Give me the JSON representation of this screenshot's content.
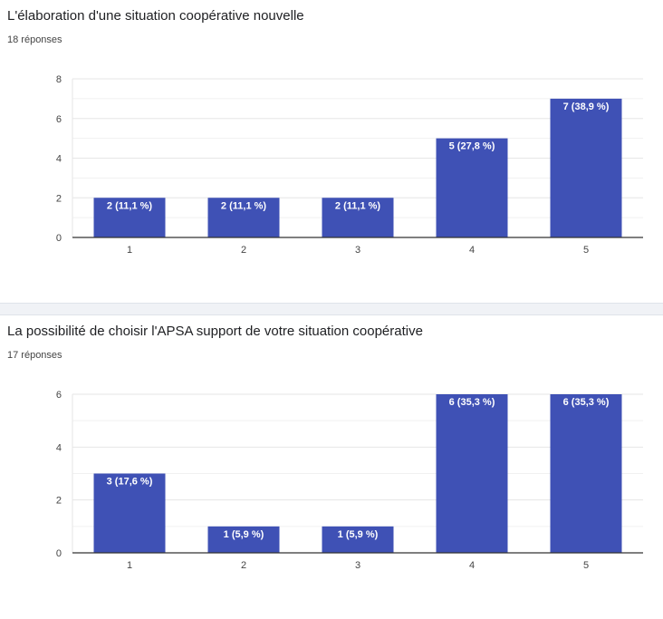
{
  "colors": {
    "bar": "#3f51b5",
    "grid": "#e6e6e6",
    "axis": "#333333"
  },
  "chart_data": [
    {
      "type": "bar",
      "title": "L'élaboration d'une situation coopérative nouvelle",
      "responses": "18 réponses",
      "categories": [
        "1",
        "2",
        "3",
        "4",
        "5"
      ],
      "values": [
        2,
        2,
        2,
        5,
        7
      ],
      "data_labels": [
        "2 (11,1 %)",
        "2 (11,1 %)",
        "2 (11,1 %)",
        "5 (27,8 %)",
        "7 (38,9 %)"
      ],
      "ylim": [
        0,
        8
      ],
      "yticks": [
        "0",
        "2",
        "4",
        "6",
        "8"
      ],
      "ytick_values": [
        0,
        2,
        4,
        6,
        8
      ]
    },
    {
      "type": "bar",
      "title": "La possibilité de choisir l'APSA support de votre situation coopérative",
      "responses": "17 réponses",
      "categories": [
        "1",
        "2",
        "3",
        "4",
        "5"
      ],
      "values": [
        3,
        1,
        1,
        6,
        6
      ],
      "data_labels": [
        "3 (17,6 %)",
        "1 (5,9 %)",
        "1 (5,9 %)",
        "6 (35,3 %)",
        "6 (35,3 %)"
      ],
      "ylim": [
        0,
        6
      ],
      "yticks": [
        "0",
        "2",
        "4",
        "6"
      ],
      "ytick_values": [
        0,
        2,
        4,
        6
      ]
    }
  ]
}
